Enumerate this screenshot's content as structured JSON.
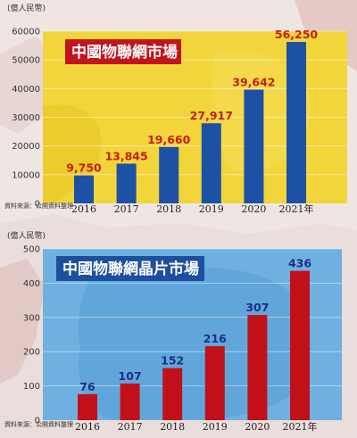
{
  "chart_data": [
    {
      "type": "bar",
      "title": "中國物聯網市場",
      "ylabel": "(億人民幣)",
      "categories": [
        "2016",
        "2017",
        "2018",
        "2019",
        "2020",
        "2021年"
      ],
      "values": [
        9750,
        13845,
        19660,
        27917,
        39642,
        56250
      ],
      "value_labels": [
        "9,750",
        "13,845",
        "19,660",
        "27,917",
        "39,642",
        "56,250"
      ],
      "yticks": [
        "0",
        "10000",
        "20000",
        "30000",
        "40000",
        "50000",
        "60000"
      ],
      "ylim": [
        0,
        60000
      ],
      "source": "資料來源：公開資料整理",
      "grid": true,
      "colors": {
        "background": "#f2d43b",
        "bar": "#1d51a3",
        "value_label": "#c81d12",
        "title_box": "#c3141c"
      }
    },
    {
      "type": "bar",
      "title": "中國物聯網晶片市場",
      "ylabel": "(億人民幣)",
      "categories": [
        "2016",
        "2017",
        "2018",
        "2019",
        "2020",
        "2021年"
      ],
      "values": [
        76,
        107,
        152,
        216,
        307,
        436
      ],
      "value_labels": [
        "76",
        "107",
        "152",
        "216",
        "307",
        "436"
      ],
      "yticks": [
        "0",
        "100",
        "200",
        "300",
        "400",
        "500"
      ],
      "ylim": [
        0,
        500
      ],
      "source": "資料來源：公開資料整理",
      "grid": true,
      "colors": {
        "background": "#6fb0e0",
        "bar": "#c2101b",
        "value_label": "#1b2f86",
        "title_box": "#1d4f9e"
      }
    }
  ]
}
